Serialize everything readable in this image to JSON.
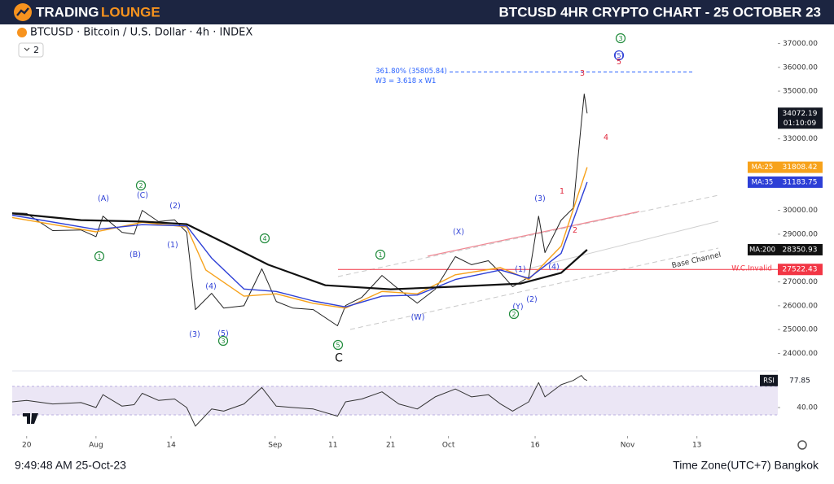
{
  "header": {
    "brand_1": "TRADING",
    "brand_2": "LOUNGE",
    "title": "BTCUSD 4HR CRYPTO CHART - 25 OCTOBER 23"
  },
  "symbol_line": "BTCUSD · Bitcoin / U.S. Dollar · 4h · INDEX",
  "collapse": "2",
  "footer": {
    "time": "9:49:48 AM 25-Oct-23",
    "timezone": "Time Zone(UTC+7) Bangkok"
  },
  "chart_data": [
    {
      "type": "line",
      "xlim": [
        198.5,
        331
      ],
      "xticks": [
        {
          "value": 201,
          "label": "20"
        },
        {
          "value": 213,
          "label": "Aug"
        },
        {
          "value": 226,
          "label": "14"
        },
        {
          "value": 244,
          "label": "Sep"
        },
        {
          "value": 254,
          "label": "11"
        },
        {
          "value": 264,
          "label": "21"
        },
        {
          "value": 274,
          "label": "Oct"
        },
        {
          "value": 289,
          "label": "16"
        },
        {
          "value": 305,
          "label": "Nov"
        },
        {
          "value": 317,
          "label": "13"
        }
      ],
      "ylim": [
        23300,
        37800
      ],
      "yticks": [
        {
          "value": 24000,
          "label": "24000.00"
        },
        {
          "value": 25000,
          "label": "25000.00"
        },
        {
          "value": 26000,
          "label": "26000.00"
        },
        {
          "value": 27000,
          "label": "27000.00"
        },
        {
          "value": 29000,
          "label": "29000.00"
        },
        {
          "value": 30000,
          "label": "30000.00"
        },
        {
          "value": 33000,
          "label": "33000.00"
        },
        {
          "value": 35000,
          "label": "35000.00"
        },
        {
          "value": 36000,
          "label": "36000.00"
        },
        {
          "value": 37000,
          "label": "37000.00"
        }
      ],
      "countdown": "01:10:09",
      "series": [
        {
          "color": "#222222",
          "x": [
            198.5,
            201,
            205.5,
            210.4,
            213,
            214.2,
            217.5,
            219.6,
            221,
            223.8,
            226.6,
            228.7,
            230.2,
            233,
            235.1,
            238.6,
            241.7,
            244.2,
            247.1,
            250.6,
            254.8,
            256.2,
            259,
            262.5,
            265.4,
            268.6,
            271.7,
            275.2,
            278,
            280.9,
            283,
            285.1,
            287.9,
            289.6,
            290.7,
            293.5,
            295.6,
            297,
            297.5,
            298
          ],
          "values": [
            29900,
            29870,
            29150,
            29180,
            28900,
            29760,
            29080,
            29000,
            30000,
            29530,
            29600,
            29080,
            25840,
            26520,
            25900,
            26000,
            27550,
            26180,
            25900,
            25840,
            25160,
            26010,
            26350,
            27270,
            26690,
            26110,
            26690,
            28060,
            27720,
            27890,
            27380,
            26800,
            27200,
            29760,
            28230,
            29590,
            30100,
            33690,
            34880,
            34072.19
          ]
        },
        {
          "name": "MA:25",
          "color": "#f7a21b",
          "x": [
            198.5,
            213,
            221,
            228.7,
            232,
            238.6,
            244.2,
            250.6,
            256.2,
            262.5,
            268.6,
            275.2,
            283,
            287.9,
            293.5,
            298
          ],
          "values": [
            29700,
            29100,
            29500,
            29300,
            27500,
            26400,
            26500,
            26100,
            25900,
            26600,
            26500,
            27300,
            27600,
            27100,
            28500,
            31808.42
          ]
        },
        {
          "name": "MA:35",
          "color": "#2d3fd6",
          "x": [
            198.5,
            213,
            221,
            228.7,
            233,
            238.6,
            244.2,
            250.6,
            256.2,
            262.5,
            268.6,
            275.2,
            283,
            287.9,
            293.5,
            298
          ],
          "values": [
            29800,
            29200,
            29400,
            29350,
            28000,
            26700,
            26600,
            26200,
            25950,
            26400,
            26450,
            27100,
            27500,
            27150,
            28200,
            31183.75
          ]
        },
        {
          "name": "MA:200",
          "color": "#111111",
          "x": [
            198.5,
            210.4,
            221,
            228.7,
            235.8,
            242.8,
            252.7,
            264,
            275.2,
            286.5,
            293.5,
            298
          ],
          "values": [
            29870,
            29590,
            29530,
            29420,
            28570,
            27720,
            26860,
            26690,
            26800,
            26930,
            27380,
            28350.93
          ]
        }
      ],
      "levels": [
        {
          "label": "W.C.Invalid",
          "value": 27522.43,
          "color": "#f23645",
          "style": "solid",
          "badge": true
        },
        {
          "label": "361.80% (35805.84)",
          "note": "W3 = 3.618 x W1",
          "value": 35805.84,
          "color": "#2962ff",
          "style": "dashed",
          "badge": false
        }
      ],
      "channel_label": "Base Channel",
      "annotations": [
        {
          "text": "3",
          "color": "#1e8a3a",
          "circled": true
        },
        {
          "text": "(5)",
          "color": "#2d3fd6",
          "circled": true
        },
        {
          "text": "5",
          "color": "#e0263a",
          "circled": false
        },
        {
          "text": "3",
          "color": "#e0263a",
          "circled": false
        },
        {
          "text": "4",
          "color": "#e0263a",
          "circled": false
        },
        {
          "text": "1",
          "color": "#e0263a",
          "circled": false
        },
        {
          "text": "2",
          "color": "#e0263a",
          "circled": false
        },
        {
          "text": "(3)",
          "color": "#2d3fd6",
          "circled": false
        },
        {
          "text": "(1)",
          "color": "#2d3fd6",
          "circled": false
        },
        {
          "text": "(4)",
          "color": "#2d3fd6",
          "circled": false
        },
        {
          "text": "(2)",
          "color": "#2d3fd6",
          "circled": false
        },
        {
          "text": "(Y)",
          "color": "#2d3fd6",
          "circled": false
        },
        {
          "text": "2",
          "color": "#1e8a3a",
          "circled": true
        },
        {
          "text": "(X)",
          "color": "#2d3fd6",
          "circled": false
        },
        {
          "text": "(W)",
          "color": "#2d3fd6",
          "circled": false
        },
        {
          "text": "1",
          "color": "#1e8a3a",
          "circled": true
        },
        {
          "text": "5",
          "color": "#1e8a3a",
          "circled": true
        },
        {
          "text": "C",
          "color": "#111111",
          "circled": false
        },
        {
          "text": "4",
          "color": "#1e8a3a",
          "circled": true
        },
        {
          "text": "(4)",
          "color": "#2d3fd6",
          "circled": false
        },
        {
          "text": "(3)",
          "color": "#2d3fd6",
          "circled": false
        },
        {
          "text": "(5)",
          "color": "#2d3fd6",
          "circled": false
        },
        {
          "text": "3",
          "color": "#1e8a3a",
          "circled": true
        },
        {
          "text": "(A)",
          "color": "#2d3fd6",
          "circled": false
        },
        {
          "text": "(C)",
          "color": "#2d3fd6",
          "circled": false
        },
        {
          "text": "2",
          "color": "#1e8a3a",
          "circled": true
        },
        {
          "text": "(2)",
          "color": "#2d3fd6",
          "circled": false
        },
        {
          "text": "(1)",
          "color": "#2d3fd6",
          "circled": false
        },
        {
          "text": "(B)",
          "color": "#2d3fd6",
          "circled": false
        },
        {
          "text": "1",
          "color": "#1e8a3a",
          "circled": true
        }
      ]
    },
    {
      "type": "line",
      "name": "RSI",
      "xlim": [
        198.5,
        331
      ],
      "ylim": [
        7,
        89
      ],
      "yticks": [
        {
          "value": 40,
          "label": "40.00"
        }
      ],
      "series": [
        {
          "color": "#333333",
          "x": [
            198.5,
            201,
            205.5,
            210.4,
            213,
            214.2,
            217.5,
            219.6,
            221,
            223.8,
            226.6,
            228.7,
            230.2,
            233,
            235.1,
            238.6,
            241.7,
            244.2,
            247.1,
            250.6,
            254.8,
            256.2,
            259,
            262.5,
            265.4,
            268.6,
            271.7,
            275.2,
            278,
            280.9,
            283,
            285.1,
            287.9,
            289.6,
            290.7,
            293.5,
            295.6,
            297,
            297.5,
            298
          ],
          "values": [
            48,
            50,
            45,
            47,
            40,
            58,
            42,
            44,
            60,
            50,
            52,
            40,
            14,
            38,
            35,
            45,
            68,
            42,
            40,
            38,
            28,
            48,
            52,
            62,
            45,
            38,
            55,
            66,
            55,
            58,
            45,
            35,
            48,
            75,
            55,
            72,
            78,
            85,
            80,
            77.85
          ]
        }
      ]
    }
  ]
}
